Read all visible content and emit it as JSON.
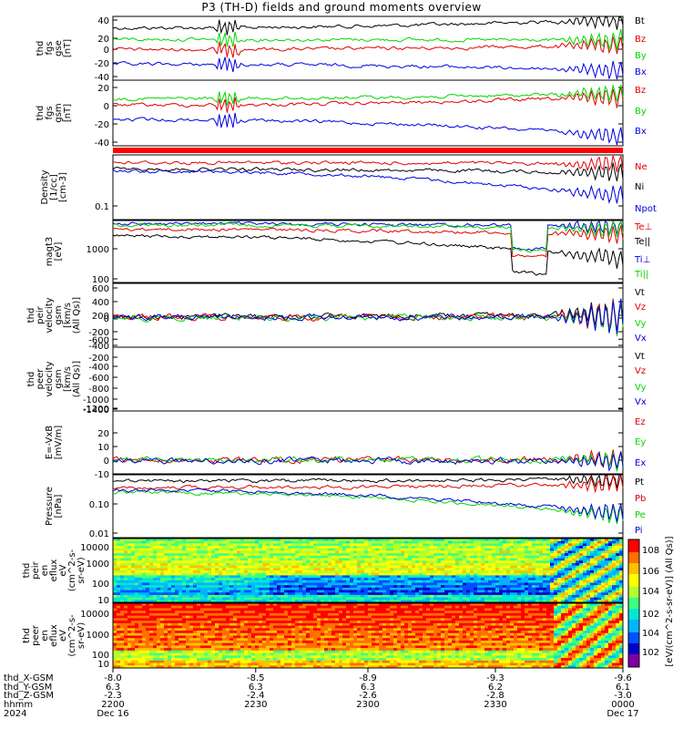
{
  "title": "P3 (TH-D) fields and ground moments overview",
  "colors": {
    "black": "#000000",
    "red": "#e00000",
    "green": "#00d800",
    "blue": "#0000e0"
  },
  "chart_data": [
    {
      "type": "line",
      "panel": "fgs_gse",
      "ylabel": [
        "thd",
        "fgs",
        "gse",
        "[nT]"
      ],
      "ylim": [
        -45,
        48
      ],
      "yticks": [
        "40",
        "20",
        "0",
        "-20",
        "-40"
      ],
      "legend": [
        "Bt",
        "Bz",
        "By",
        "Bx"
      ],
      "series": [
        {
          "name": "Bt",
          "level": 28,
          "late": 45
        },
        {
          "name": "Bz",
          "level": 6,
          "late": 5
        },
        {
          "name": "By",
          "level": 20,
          "late": 18
        },
        {
          "name": "Bx",
          "level": -18,
          "late": -35
        }
      ]
    },
    {
      "type": "line",
      "panel": "fgs_gsm",
      "ylabel": [
        "thd",
        "fgs",
        "gsm",
        "[nT]"
      ],
      "ylim": [
        -50,
        30
      ],
      "yticks": [
        "20",
        "0",
        "-20",
        "-40"
      ],
      "legend": [
        "Bz",
        "By",
        "Bx"
      ],
      "series": [
        {
          "name": "Bz",
          "level": -5
        },
        {
          "name": "By",
          "level": 5
        },
        {
          "name": "Bx",
          "level": -20
        }
      ]
    },
    {
      "type": "line",
      "panel": "density",
      "ylabel": [
        "Density",
        "[1/cc]",
        "[cm-3]"
      ],
      "ylog": true,
      "yticks": [
        "0.1"
      ],
      "legend": [
        "Ne",
        "Ni",
        "Npot"
      ],
      "series": [
        {
          "name": "Ne"
        },
        {
          "name": "Ni"
        },
        {
          "name": "Npot"
        }
      ]
    },
    {
      "type": "line",
      "panel": "temperature",
      "ylabel": [
        "magt3",
        "[eV]"
      ],
      "ylog": true,
      "yticks": [
        "1000",
        "100"
      ],
      "legend": [
        "Te⊥",
        "Te||",
        "Ti⊥",
        "Ti||"
      ],
      "series": [
        {
          "name": "Te⊥"
        },
        {
          "name": "Te||"
        },
        {
          "name": "Ti⊥"
        },
        {
          "name": "Ti||"
        }
      ]
    },
    {
      "type": "line",
      "panel": "peir_velocity",
      "ylabel": [
        "thd",
        "peir",
        "velocity",
        "gsm",
        "[km/s",
        "(All Qs)]"
      ],
      "ylim": [
        -650,
        650
      ],
      "yticks": [
        "600",
        "400",
        "200",
        "0",
        "-200",
        "-400",
        "-600"
      ],
      "legend": [
        "Vt",
        "Vz",
        "Vy",
        "Vx"
      ],
      "series": [
        {
          "name": "Vt"
        },
        {
          "name": "Vz"
        },
        {
          "name": "Vy"
        },
        {
          "name": "Vx"
        }
      ]
    },
    {
      "type": "line",
      "panel": "peer_velocity",
      "ylabel": [
        "thd",
        "peer",
        "velocity",
        "gsm",
        "[km/s",
        "(All Qs)]"
      ],
      "ylim": [
        -1450,
        -150
      ],
      "yticks": [
        "-200",
        "-400",
        "-600",
        "-800",
        "-1000",
        "-1200",
        "-1400"
      ],
      "legend": [
        "Vt",
        "Vz",
        "Vy",
        "Vx"
      ],
      "series": []
    },
    {
      "type": "line",
      "panel": "efield",
      "ylabel": [
        "E=-VxB",
        "[mV/m]"
      ],
      "ylim": [
        -10,
        30
      ],
      "yticks": [
        "20",
        "10",
        "0",
        "-10"
      ],
      "legend": [
        "Ez",
        "Ey",
        "Ex"
      ],
      "series": [
        {
          "name": "Ez"
        },
        {
          "name": "Ey"
        },
        {
          "name": "Ex"
        }
      ]
    },
    {
      "type": "line",
      "panel": "pressure",
      "ylabel": [
        "Pressure",
        "[nPa]"
      ],
      "ylog": true,
      "yticks": [
        "0.10",
        "0.01"
      ],
      "legend": [
        "Pt",
        "Pb",
        "Pe",
        "Pi"
      ],
      "series": [
        {
          "name": "Pt"
        },
        {
          "name": "Pb"
        },
        {
          "name": "Pe"
        },
        {
          "name": "Pi"
        }
      ]
    },
    {
      "type": "heatmap",
      "panel": "peir_eflux",
      "ylabel": [
        "thd",
        "peir",
        "en",
        "eflux",
        "eV",
        "(cm^2-s-",
        "sr-eV)"
      ],
      "yticks": [
        "10000",
        "1000",
        "100",
        "10"
      ],
      "colorbar_ticks": [
        "10^8",
        "10^6",
        "10^4",
        "10^2"
      ],
      "colorbar_label": "[eV/(cm^2-s-sr-eV)] (All Qs)]"
    },
    {
      "type": "heatmap",
      "panel": "peer_eflux",
      "ylabel": [
        "thd",
        "peer",
        "en",
        "eflux",
        "eV",
        "(cm^2-s-",
        "sr-eV)"
      ],
      "yticks": [
        "10000",
        "1000",
        "100",
        "10"
      ],
      "colorbar_ticks": [
        "10^8",
        "10^6",
        "10^4",
        "10^2"
      ]
    }
  ],
  "xaxis": {
    "rows": [
      {
        "label": "thd_X-GSM",
        "values": [
          "-8.0",
          "-8.5",
          "-8.9",
          "-9.3",
          "-9.6"
        ]
      },
      {
        "label": "thd_Y-GSM",
        "values": [
          "6.3",
          "6.3",
          "6.3",
          "6.2",
          "6.1"
        ]
      },
      {
        "label": "thd_Z-GSM",
        "values": [
          "-2.3",
          "-2.4",
          "-2.6",
          "-2.8",
          "-3.0"
        ]
      },
      {
        "label": "hhmm",
        "values": [
          "2200",
          "2230",
          "2300",
          "2330",
          "0000"
        ]
      },
      {
        "label": "2024",
        "values": [
          "Dec 16",
          "",
          "",
          "",
          "Dec 17"
        ]
      }
    ]
  }
}
